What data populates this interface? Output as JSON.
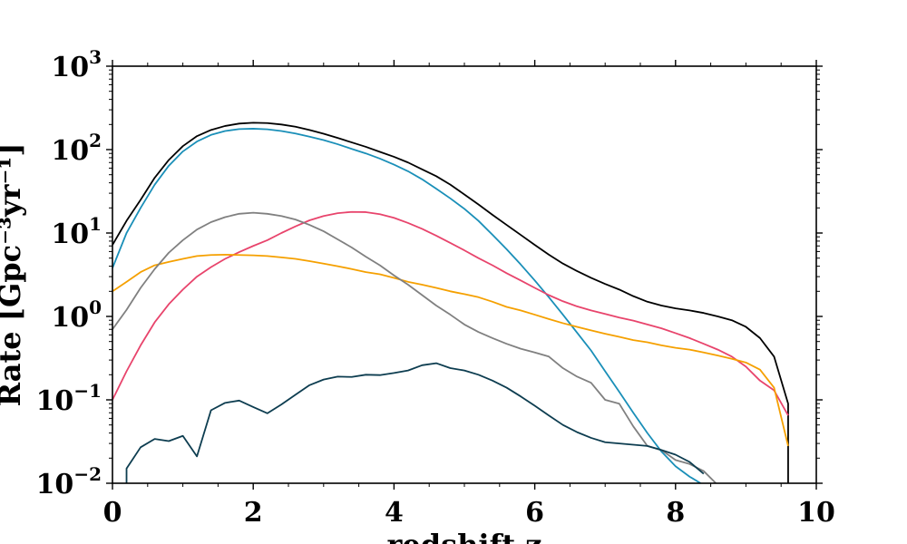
{
  "chart_data": {
    "type": "line",
    "xlabel": "redshift z",
    "ylabel": "Rate [Gpc⁻³yr⁻¹]",
    "xlim": [
      0,
      10
    ],
    "ylim": [
      0.01,
      1000
    ],
    "yscale": "log",
    "grid": false,
    "x_ticks": [
      {
        "value": 0,
        "label": "0"
      },
      {
        "value": 2,
        "label": "2"
      },
      {
        "value": 4,
        "label": "4"
      },
      {
        "value": 6,
        "label": "6"
      },
      {
        "value": 8,
        "label": "8"
      },
      {
        "value": 10,
        "label": "10"
      }
    ],
    "y_ticks": [
      {
        "value": 0.01,
        "base": "10",
        "exp": "−2"
      },
      {
        "value": 0.1,
        "base": "10",
        "exp": "−1"
      },
      {
        "value": 1,
        "base": "10",
        "exp": "0"
      },
      {
        "value": 10,
        "base": "10",
        "exp": "1"
      },
      {
        "value": 100,
        "base": "10",
        "exp": "2"
      },
      {
        "value": 1000,
        "base": "10",
        "exp": "3"
      }
    ],
    "series": [
      {
        "color": "#000000",
        "x": [
          0,
          0.2,
          0.4,
          0.6,
          0.8,
          1.0,
          1.2,
          1.4,
          1.6,
          1.8,
          2.0,
          2.2,
          2.4,
          2.6,
          2.8,
          3.0,
          3.2,
          3.4,
          3.6,
          3.8,
          4.0,
          4.2,
          4.4,
          4.6,
          4.8,
          5.0,
          5.2,
          5.4,
          5.6,
          5.8,
          6.0,
          6.2,
          6.4,
          6.6,
          6.8,
          7.0,
          7.2,
          7.4,
          7.6,
          7.8,
          8.0,
          8.2,
          8.4,
          8.6,
          8.8,
          9.0,
          9.2,
          9.4,
          9.6,
          9.6
        ],
        "y": [
          7.2,
          14,
          25,
          46,
          75,
          110,
          145,
          172,
          192,
          205,
          210,
          208,
          200,
          188,
          172,
          155,
          138,
          122,
          108,
          94,
          82,
          70,
          58,
          48,
          38,
          29,
          22,
          16.5,
          12.5,
          9.5,
          7.2,
          5.5,
          4.3,
          3.5,
          2.9,
          2.45,
          2.1,
          1.75,
          1.5,
          1.35,
          1.25,
          1.18,
          1.1,
          1.0,
          0.9,
          0.75,
          0.55,
          0.33,
          0.09,
          0.01
        ]
      },
      {
        "color": "#1a8fb8",
        "x": [
          0,
          0.2,
          0.4,
          0.6,
          0.8,
          1.0,
          1.2,
          1.4,
          1.6,
          1.8,
          2.0,
          2.2,
          2.4,
          2.6,
          2.8,
          3.0,
          3.2,
          3.4,
          3.6,
          3.8,
          4.0,
          4.2,
          4.4,
          4.6,
          4.8,
          5.0,
          5.2,
          5.4,
          5.6,
          5.8,
          6.0,
          6.2,
          6.4,
          6.6,
          6.8,
          7.0,
          7.2,
          7.4,
          7.6,
          7.8,
          8.0,
          8.2,
          8.4
        ],
        "y": [
          3.8,
          10,
          20,
          38,
          64,
          95,
          125,
          150,
          167,
          176,
          178,
          175,
          167,
          156,
          143,
          130,
          116,
          102,
          90,
          78,
          66,
          55,
          44,
          34,
          26,
          19.5,
          14,
          9.5,
          6.4,
          4.2,
          2.7,
          1.7,
          1.05,
          0.64,
          0.39,
          0.22,
          0.125,
          0.07,
          0.04,
          0.024,
          0.016,
          0.012,
          0.0095
        ]
      },
      {
        "color": "#e8446c",
        "x": [
          0,
          0.2,
          0.4,
          0.6,
          0.8,
          1.0,
          1.2,
          1.4,
          1.6,
          1.8,
          2.0,
          2.2,
          2.4,
          2.6,
          2.8,
          3.0,
          3.2,
          3.4,
          3.6,
          3.8,
          4.0,
          4.2,
          4.4,
          4.6,
          4.8,
          5.0,
          5.2,
          5.4,
          5.6,
          5.8,
          6.0,
          6.2,
          6.4,
          6.6,
          6.8,
          7.0,
          7.2,
          7.4,
          7.6,
          7.8,
          8.0,
          8.2,
          8.4,
          8.6,
          8.8,
          9.0,
          9.2,
          9.4,
          9.6
        ],
        "y": [
          0.1,
          0.22,
          0.45,
          0.85,
          1.4,
          2.1,
          3.0,
          3.9,
          4.9,
          5.9,
          7.0,
          8.2,
          10,
          12,
          14.2,
          16,
          17.3,
          17.9,
          17.8,
          16.8,
          15.2,
          13.2,
          11.2,
          9.3,
          7.6,
          6.2,
          5.0,
          4.1,
          3.3,
          2.7,
          2.2,
          1.8,
          1.52,
          1.32,
          1.18,
          1.07,
          0.97,
          0.89,
          0.8,
          0.72,
          0.63,
          0.55,
          0.47,
          0.4,
          0.33,
          0.25,
          0.17,
          0.13,
          0.065
        ]
      },
      {
        "color": "#f5a000",
        "x": [
          0,
          0.2,
          0.4,
          0.6,
          0.8,
          1.0,
          1.2,
          1.4,
          1.6,
          1.8,
          2.0,
          2.2,
          2.4,
          2.6,
          2.8,
          3.0,
          3.2,
          3.4,
          3.6,
          3.8,
          4.0,
          4.2,
          4.4,
          4.6,
          4.8,
          5.0,
          5.2,
          5.4,
          5.6,
          5.8,
          6.0,
          6.2,
          6.4,
          6.6,
          6.8,
          7.0,
          7.2,
          7.4,
          7.6,
          7.8,
          8.0,
          8.2,
          8.4,
          8.6,
          8.8,
          9.0,
          9.2,
          9.4,
          9.6
        ],
        "y": [
          2.0,
          2.6,
          3.4,
          4.1,
          4.5,
          4.9,
          5.3,
          5.45,
          5.5,
          5.45,
          5.4,
          5.3,
          5.1,
          4.9,
          4.6,
          4.3,
          4.0,
          3.7,
          3.4,
          3.2,
          2.9,
          2.6,
          2.4,
          2.2,
          2.0,
          1.85,
          1.7,
          1.5,
          1.3,
          1.18,
          1.05,
          0.93,
          0.83,
          0.75,
          0.68,
          0.62,
          0.57,
          0.52,
          0.49,
          0.45,
          0.42,
          0.4,
          0.37,
          0.34,
          0.31,
          0.28,
          0.23,
          0.14,
          0.028
        ]
      },
      {
        "color": "#808080",
        "x": [
          0,
          0.2,
          0.4,
          0.6,
          0.8,
          1.0,
          1.2,
          1.4,
          1.6,
          1.8,
          2.0,
          2.2,
          2.4,
          2.6,
          2.8,
          3.0,
          3.2,
          3.4,
          3.6,
          3.8,
          4.0,
          4.2,
          4.4,
          4.6,
          4.8,
          5.0,
          5.2,
          5.4,
          5.6,
          5.8,
          6.0,
          6.2,
          6.4,
          6.6,
          6.8,
          7.0,
          7.2,
          7.4,
          7.6,
          7.8,
          8.0,
          8.2,
          8.4,
          8.6
        ],
        "y": [
          0.7,
          1.2,
          2.2,
          3.7,
          5.8,
          8.2,
          11,
          13.5,
          15.5,
          17,
          17.5,
          17,
          16,
          14.5,
          12.5,
          10.5,
          8.4,
          6.7,
          5.2,
          4.1,
          3.1,
          2.4,
          1.8,
          1.35,
          1.05,
          0.8,
          0.65,
          0.55,
          0.47,
          0.41,
          0.37,
          0.33,
          0.24,
          0.19,
          0.16,
          0.1,
          0.09,
          0.048,
          0.028,
          0.025,
          0.019,
          0.017,
          0.014,
          0.0095
        ]
      },
      {
        "color": "#0d3d50",
        "x": [
          0.2,
          0.2,
          0.4,
          0.6,
          0.8,
          1.0,
          1.2,
          1.4,
          1.6,
          1.8,
          2.0,
          2.2,
          2.4,
          2.6,
          2.8,
          3.0,
          3.2,
          3.4,
          3.6,
          3.8,
          4.0,
          4.2,
          4.4,
          4.6,
          4.8,
          5.0,
          5.2,
          5.4,
          5.6,
          5.8,
          6.0,
          6.2,
          6.4,
          6.6,
          6.8,
          7.0,
          7.2,
          7.4,
          7.6,
          7.8,
          8.0,
          8.2,
          8.4
        ],
        "y": [
          0.0095,
          0.015,
          0.027,
          0.034,
          0.032,
          0.037,
          0.021,
          0.075,
          0.092,
          0.098,
          0.082,
          0.069,
          0.088,
          0.115,
          0.15,
          0.175,
          0.19,
          0.188,
          0.2,
          0.198,
          0.21,
          0.225,
          0.26,
          0.275,
          0.24,
          0.225,
          0.2,
          0.17,
          0.14,
          0.11,
          0.085,
          0.065,
          0.05,
          0.041,
          0.035,
          0.031,
          0.03,
          0.029,
          0.028,
          0.025,
          0.022,
          0.018,
          0.013
        ]
      }
    ]
  }
}
